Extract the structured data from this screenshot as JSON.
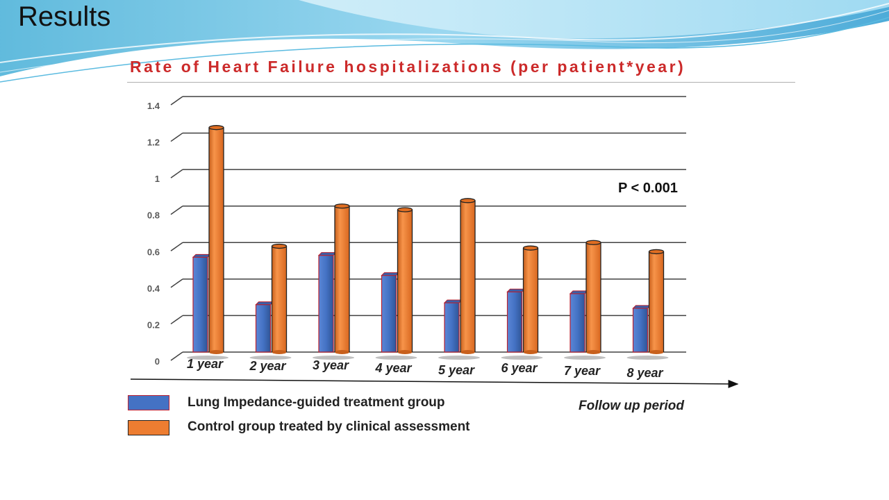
{
  "slide": {
    "title": "Results"
  },
  "chart_data": {
    "type": "bar",
    "title": "Rate of Heart Failure hospitalizations (per patient*year)",
    "categories": [
      "1 year",
      "2 year",
      "3 year",
      "4 year",
      "5 year",
      "6 year",
      "7 year",
      "8 year"
    ],
    "series": [
      {
        "name": "Lung Impedance-guided treatment group",
        "color": "#4472c4",
        "values": [
          0.52,
          0.26,
          0.53,
          0.42,
          0.27,
          0.33,
          0.32,
          0.24
        ]
      },
      {
        "name": "Control group treated by clinical assessment",
        "color": "#ed7d31",
        "values": [
          1.23,
          0.58,
          0.8,
          0.78,
          0.83,
          0.57,
          0.6,
          0.55
        ]
      }
    ],
    "ylim": [
      0,
      1.4
    ],
    "yticks": [
      0,
      0.2,
      0.4,
      0.6,
      0.8,
      1,
      1.2,
      1.4
    ],
    "ytick_labels": [
      "0",
      "0.2",
      "0.4",
      "0.6",
      "0.8",
      "1",
      "1.2",
      "1.4"
    ],
    "xlabel": "Follow up period",
    "ylabel": "",
    "grid": true,
    "legend_position": "bottom-left",
    "annotations": [
      "P < 0.001"
    ]
  }
}
